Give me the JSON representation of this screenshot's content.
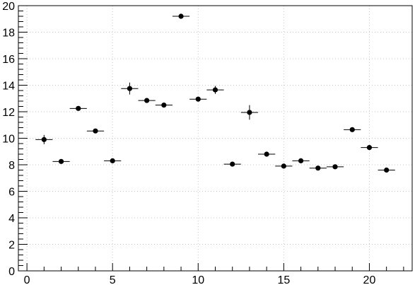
{
  "chart_data": {
    "type": "scatter",
    "title": "",
    "xlabel": "",
    "ylabel": "",
    "xlim": [
      -0.5,
      22.5
    ],
    "ylim": [
      0,
      20
    ],
    "grid": true,
    "x_ticks": [
      "0",
      "5",
      "10",
      "15",
      "20"
    ],
    "y_ticks": [
      "0",
      "2",
      "4",
      "6",
      "8",
      "10",
      "12",
      "14",
      "16",
      "18",
      "20"
    ],
    "series": [
      {
        "points": [
          {
            "x": 1,
            "y": 9.9,
            "xerr": 0.5,
            "yerr": 0.35
          },
          {
            "x": 2,
            "y": 8.25,
            "xerr": 0.5,
            "yerr": 0.15
          },
          {
            "x": 3,
            "y": 12.25,
            "xerr": 0.5,
            "yerr": 0.15
          },
          {
            "x": 4,
            "y": 10.55,
            "xerr": 0.5,
            "yerr": 0.15
          },
          {
            "x": 5,
            "y": 8.3,
            "xerr": 0.5,
            "yerr": 0.15
          },
          {
            "x": 6,
            "y": 13.75,
            "xerr": 0.5,
            "yerr": 0.45
          },
          {
            "x": 7,
            "y": 12.85,
            "xerr": 0.5,
            "yerr": 0.15
          },
          {
            "x": 8,
            "y": 12.5,
            "xerr": 0.5,
            "yerr": 0.15
          },
          {
            "x": 9,
            "y": 19.2,
            "xerr": 0.5,
            "yerr": 0.15
          },
          {
            "x": 10,
            "y": 12.95,
            "xerr": 0.5,
            "yerr": 0.15
          },
          {
            "x": 11,
            "y": 13.65,
            "xerr": 0.5,
            "yerr": 0.3
          },
          {
            "x": 12,
            "y": 8.05,
            "xerr": 0.5,
            "yerr": 0.15
          },
          {
            "x": 13,
            "y": 11.95,
            "xerr": 0.5,
            "yerr": 0.55
          },
          {
            "x": 14,
            "y": 8.8,
            "xerr": 0.5,
            "yerr": 0.15
          },
          {
            "x": 15,
            "y": 7.9,
            "xerr": 0.5,
            "yerr": 0.15
          },
          {
            "x": 16,
            "y": 8.3,
            "xerr": 0.5,
            "yerr": 0.15
          },
          {
            "x": 17,
            "y": 7.75,
            "xerr": 0.5,
            "yerr": 0.15
          },
          {
            "x": 18,
            "y": 7.85,
            "xerr": 0.5,
            "yerr": 0.15
          },
          {
            "x": 19,
            "y": 10.65,
            "xerr": 0.5,
            "yerr": 0.15
          },
          {
            "x": 20,
            "y": 9.3,
            "xerr": 0.5,
            "yerr": 0.15
          },
          {
            "x": 21,
            "y": 7.6,
            "xerr": 0.5,
            "yerr": 0.15
          }
        ]
      }
    ],
    "colors": {
      "marker": "#000000",
      "grid": "#c8c8c8",
      "axis": "#000000"
    }
  }
}
